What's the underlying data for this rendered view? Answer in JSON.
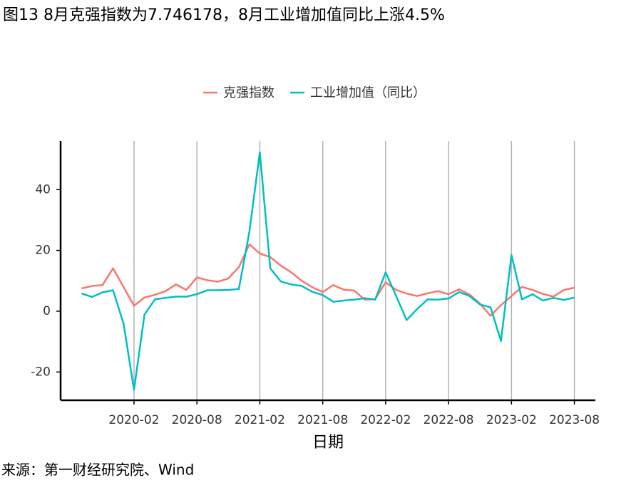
{
  "chart_data": {
    "type": "line",
    "title": "图13 8月克强指数为7.746178，8月工业增加值同比上涨4.5%",
    "x_label": "日期",
    "source": "来源：第一财经研究院、Wind",
    "x": [
      "2019-09",
      "2019-10",
      "2019-11",
      "2019-12",
      "2020-01",
      "2020-02",
      "2020-03",
      "2020-04",
      "2020-05",
      "2020-06",
      "2020-07",
      "2020-08",
      "2020-09",
      "2020-10",
      "2020-11",
      "2020-12",
      "2021-01",
      "2021-02",
      "2021-03",
      "2021-04",
      "2021-05",
      "2021-06",
      "2021-07",
      "2021-08",
      "2021-09",
      "2021-10",
      "2021-11",
      "2021-12",
      "2022-01",
      "2022-02",
      "2022-03",
      "2022-04",
      "2022-05",
      "2022-06",
      "2022-07",
      "2022-08",
      "2022-09",
      "2022-10",
      "2022-11",
      "2022-12",
      "2023-01",
      "2023-02",
      "2023-03",
      "2023-04",
      "2023-05",
      "2023-06",
      "2023-07",
      "2023-08"
    ],
    "series": [
      {
        "name": "克强指数",
        "color": "#f8766d",
        "values": [
          7.5,
          8.3,
          8.6,
          14.1,
          8,
          1.8,
          4.5,
          5.4,
          6.6,
          8.8,
          7.0,
          11.1,
          10.2,
          9.7,
          10.8,
          14.5,
          22.0,
          19.0,
          17.8,
          15.0,
          12.8,
          10.0,
          7.9,
          6.3,
          8.6,
          7.1,
          6.8,
          3.8,
          4.0,
          9.5,
          7.0,
          5.8,
          5.0,
          5.9,
          6.6,
          5.6,
          7.2,
          5.5,
          2.5,
          -1.5,
          2.0,
          5.0,
          8.0,
          7.0,
          5.7,
          4.8,
          7.0,
          7.746178
        ]
      },
      {
        "name": "工业增加值（同比）",
        "color": "#00bfc4",
        "values": [
          5.8,
          4.7,
          6.2,
          6.9,
          -4,
          -25.9,
          -1.1,
          3.9,
          4.4,
          4.8,
          4.8,
          5.6,
          6.9,
          6.9,
          7.0,
          7.3,
          26,
          52.3,
          14.1,
          9.8,
          8.8,
          8.3,
          6.4,
          5.3,
          3.1,
          3.5,
          3.8,
          4.3,
          3.8,
          12.8,
          5.0,
          -2.9,
          0.7,
          3.9,
          3.8,
          4.2,
          6.3,
          5.0,
          2.2,
          1.3,
          -9.8,
          18.5,
          3.9,
          5.6,
          3.5,
          4.4,
          3.7,
          4.5
        ]
      }
    ],
    "xlim": [
      "2019-07",
      "2023-10"
    ],
    "xticks": [
      "2020-02",
      "2020-08",
      "2021-02",
      "2021-08",
      "2022-02",
      "2022-08",
      "2023-02",
      "2023-08"
    ],
    "ylim": [
      -29.3,
      56
    ],
    "yticks": [
      -20,
      0,
      20,
      40
    ],
    "grid": "x",
    "legend": "top"
  }
}
